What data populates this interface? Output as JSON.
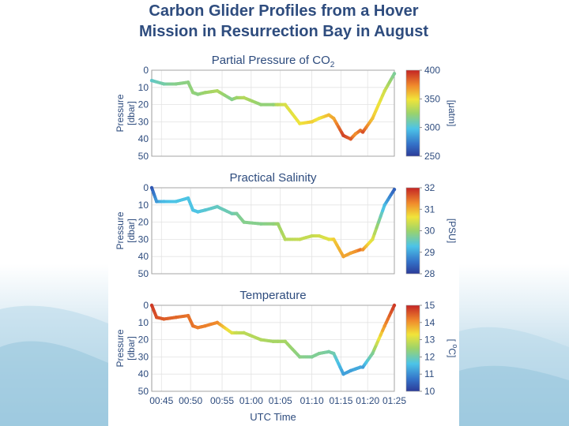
{
  "slide": {
    "title_line1": "Carbon Glider Profiles from a Hover",
    "title_line2": "Mission in Resurrection Bay in August"
  },
  "chart_data": [
    {
      "type": "scatter",
      "title": "Partial Pressure of CO",
      "title_subscript": "2",
      "ylabel_line1": "Pressure",
      "ylabel_line2": "[dbar]",
      "y_tick_labels": [
        "0",
        "10",
        "20",
        "30",
        "40",
        "50"
      ],
      "ylim": [
        0,
        50
      ],
      "xlim": [
        0,
        100
      ],
      "colorbar": {
        "tick_labels": [
          "400",
          "350",
          "300",
          "250"
        ],
        "unit": "[μatm]",
        "range": [
          250,
          400
        ]
      },
      "series": [
        {
          "name": "pCO2",
          "x": [
            0,
            5,
            10,
            15,
            17,
            19,
            22,
            27,
            33,
            35,
            38,
            45,
            50,
            52,
            55,
            61,
            66,
            69,
            73,
            75,
            79,
            82,
            84,
            86,
            87,
            91,
            96,
            100
          ],
          "y": [
            6,
            8,
            8,
            7,
            13,
            14,
            13,
            12,
            17,
            16,
            16,
            20,
            20,
            20,
            20,
            31,
            30,
            28,
            26,
            28,
            38,
            40,
            37,
            35,
            36,
            28,
            12,
            2
          ],
          "c": [
            305,
            312,
            318,
            320,
            322,
            320,
            325,
            330,
            318,
            325,
            332,
            322,
            322,
            334,
            342,
            348,
            355,
            348,
            360,
            365,
            392,
            385,
            372,
            380,
            388,
            358,
            340,
            315
          ]
        }
      ]
    },
    {
      "type": "scatter",
      "title": "Practical Salinity",
      "ylabel_line1": "Pressure",
      "ylabel_line2": "[dbar]",
      "y_tick_labels": [
        "0",
        "10",
        "20",
        "30",
        "40",
        "50"
      ],
      "ylim": [
        0,
        50
      ],
      "xlim": [
        0,
        100
      ],
      "colorbar": {
        "tick_labels": [
          "32",
          "31",
          "30",
          "29",
          "28"
        ],
        "unit": "[PSU]",
        "range": [
          28,
          32
        ]
      },
      "series": [
        {
          "name": "salinity",
          "x": [
            0,
            2,
            5,
            10,
            15,
            17,
            19,
            22,
            27,
            33,
            35,
            38,
            45,
            50,
            52,
            55,
            61,
            66,
            69,
            73,
            75,
            79,
            82,
            84,
            86,
            87,
            91,
            96,
            100
          ],
          "y": [
            0,
            8,
            8,
            8,
            6,
            13,
            14,
            13,
            11,
            15,
            15,
            20,
            21,
            21,
            21,
            30,
            30,
            28,
            28,
            30,
            30,
            40,
            38,
            37,
            36,
            36,
            30,
            10,
            1
          ],
          "c": [
            28.3,
            28.9,
            29.2,
            29.3,
            29.3,
            29.3,
            29.3,
            29.4,
            29.5,
            29.6,
            29.7,
            29.8,
            29.8,
            29.9,
            30.0,
            30.2,
            30.3,
            30.3,
            30.4,
            30.5,
            30.8,
            31.1,
            31.1,
            31.2,
            31.4,
            31.2,
            30.5,
            29.2,
            28.4
          ]
        }
      ]
    },
    {
      "type": "scatter",
      "title": "Temperature",
      "ylabel_line1": "Pressure",
      "ylabel_line2": "[dbar]",
      "y_tick_labels": [
        "0",
        "10",
        "20",
        "30",
        "40",
        "50"
      ],
      "ylim": [
        0,
        50
      ],
      "xlim": [
        0,
        100
      ],
      "x_tick_labels": [
        "00:45",
        "00:50",
        "00:55",
        "01:00",
        "01:05",
        "01:10",
        "01:15",
        "01:20",
        "01:25"
      ],
      "x_tick_values": [
        4,
        16,
        29,
        41,
        53,
        66,
        78,
        89,
        100
      ],
      "xlabel": "UTC Time",
      "colorbar": {
        "tick_labels": [
          "15",
          "14",
          "13",
          "12",
          "11",
          "10"
        ],
        "unit": "[ C]",
        "unit_superscript": "o",
        "range": [
          10,
          15
        ]
      },
      "series": [
        {
          "name": "temperature",
          "x": [
            0,
            2,
            5,
            10,
            15,
            17,
            19,
            22,
            27,
            33,
            35,
            38,
            45,
            50,
            52,
            55,
            61,
            66,
            69,
            73,
            75,
            79,
            82,
            84,
            86,
            87,
            91,
            96,
            100
          ],
          "y": [
            0,
            7,
            8,
            7,
            6,
            12,
            13,
            12,
            10,
            16,
            16,
            16,
            20,
            21,
            21,
            21,
            30,
            30,
            28,
            27,
            28,
            40,
            38,
            37,
            36,
            36,
            28,
            12,
            0
          ],
          "c": [
            14.8,
            14.6,
            14.5,
            14.4,
            14.3,
            14.3,
            14.2,
            14.2,
            14.1,
            13.1,
            12.9,
            12.8,
            12.7,
            12.6,
            12.6,
            12.6,
            12.3,
            12.2,
            12.2,
            12.1,
            12.0,
            11.2,
            11.2,
            11.3,
            11.3,
            11.2,
            12.2,
            14.0,
            14.8
          ]
        }
      ]
    }
  ]
}
